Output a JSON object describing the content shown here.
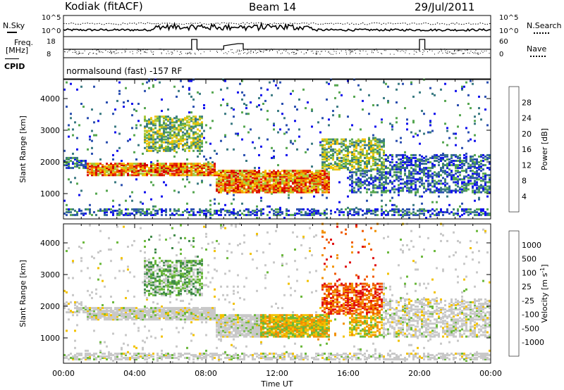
{
  "header": {
    "radar": "Kodiak (fitACF)",
    "beam": "Beam 14",
    "date": "29/Jul/2011"
  },
  "aux_panel": {
    "nsky_label": "N.Sky",
    "nsearch_label": "N.Search",
    "noise_ticks": [
      "10^5",
      "10^0"
    ],
    "freq_label_1": "Freq.",
    "freq_label_2": "[MHz]",
    "freq_ticks": [
      "18",
      "8"
    ],
    "nave_label": "Nave",
    "nave_ticks": [
      "60",
      "0"
    ],
    "cpid_label": "CPID",
    "cpid_text": "normalsound (fast) -157 RF"
  },
  "chart_data": [
    {
      "type": "heatmap",
      "panel": "power",
      "ylabel": "Slant Range [km]",
      "xlabel": "",
      "yticks": [
        "1000",
        "2000",
        "3000",
        "4000"
      ],
      "ylim": [
        200,
        4600
      ],
      "xlim_hours": [
        0,
        24
      ],
      "colorbar": {
        "label": "Power [dB]",
        "ticks": [
          "4",
          "8",
          "12",
          "16",
          "20",
          "24",
          "28"
        ],
        "colors": [
          "#1010ee",
          "#2a4fb0",
          "#3a7a82",
          "#55a650",
          "#a8c83a",
          "#f2c200",
          "#f08a00",
          "#e82a00",
          "#d00000"
        ]
      },
      "description_bands": [
        {
          "t0": 0.0,
          "t1": 1.3,
          "r0": 1750,
          "r1": 2100,
          "level": "low"
        },
        {
          "t0": 1.3,
          "t1": 8.5,
          "r0": 1550,
          "r1": 1950,
          "level": "high"
        },
        {
          "t0": 4.5,
          "t1": 7.8,
          "r0": 2300,
          "r1": 3400,
          "level": "medium"
        },
        {
          "t0": 8.5,
          "t1": 15.0,
          "r0": 1000,
          "r1": 1700,
          "level": "high"
        },
        {
          "t0": 14.5,
          "t1": 18.0,
          "r0": 1700,
          "r1": 2700,
          "level": "medium"
        },
        {
          "t0": 16.0,
          "t1": 24.0,
          "r0": 1000,
          "r1": 2200,
          "level": "low"
        },
        {
          "t0": 0.0,
          "t1": 24.0,
          "r0": 250,
          "r1": 500,
          "level": "low"
        }
      ]
    },
    {
      "type": "heatmap",
      "panel": "velocity",
      "ylabel": "Slant Range [km]",
      "xlabel": "Time UT",
      "yticks": [
        "1000",
        "2000",
        "3000",
        "4000"
      ],
      "xticks": [
        "00:00",
        "04:00",
        "08:00",
        "12:00",
        "16:00",
        "20:00",
        "00:00"
      ],
      "ylim": [
        200,
        4600
      ],
      "xlim_hours": [
        0,
        24
      ],
      "colorbar": {
        "label": "Velocity [m s",
        "label_sup": "-1",
        "ticks": [
          "1000",
          "500",
          "100",
          "25",
          "-25",
          "-100",
          "-500",
          "-1000"
        ],
        "colors": [
          "#1c3aa8",
          "#3a6fb0",
          "#3f8a48",
          "#6ab83a",
          "#c8c8c8",
          "#f2c200",
          "#f29000",
          "#f05a00",
          "#e01010"
        ]
      }
    }
  ]
}
